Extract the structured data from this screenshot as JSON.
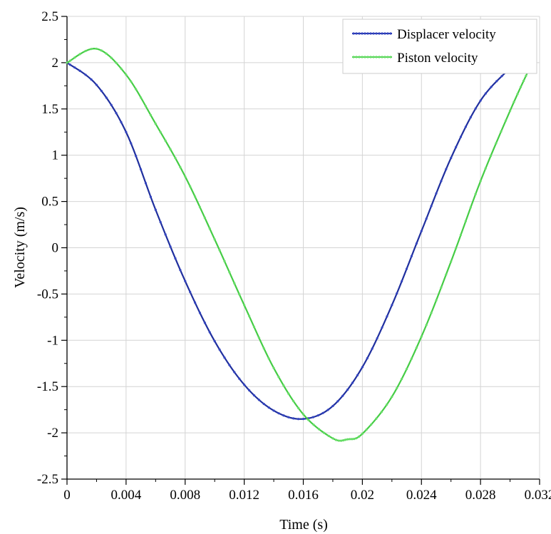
{
  "chart_data": {
    "type": "line",
    "title": "",
    "xlabel": "Time (s)",
    "ylabel": "Velocity (m/s)",
    "xlim": [
      0,
      0.032
    ],
    "ylim": [
      -2.5,
      2.5
    ],
    "x_ticks": [
      0,
      0.004,
      0.008,
      0.012,
      0.016,
      0.02,
      0.024,
      0.028,
      0.032
    ],
    "x_tick_labels": [
      "0",
      "0.004",
      "0.008",
      "0.012",
      "0.016",
      "0.02",
      "0.024",
      "0.028",
      "0.032"
    ],
    "y_ticks": [
      2.5,
      2,
      1.5,
      1,
      0.5,
      0,
      -0.5,
      -1,
      -1.5,
      -2,
      -2.5
    ],
    "y_tick_labels": [
      "2.5",
      "2",
      "1.5",
      "1",
      "0.5",
      "0",
      "-0.5",
      "-1",
      "-1.5",
      "-2",
      "-2.5"
    ],
    "grid": true,
    "legend_position": "top-right",
    "series": [
      {
        "name": "Displacer velocity",
        "color": "#1f2f9e",
        "marker_color": "#3344c0",
        "x": [
          0,
          0.002,
          0.004,
          0.006,
          0.008,
          0.01,
          0.012,
          0.014,
          0.016,
          0.018,
          0.02,
          0.022,
          0.024,
          0.026,
          0.028,
          0.03,
          0.0305
        ],
        "y": [
          2.0,
          1.76,
          1.25,
          0.41,
          -0.36,
          -1.01,
          -1.48,
          -1.76,
          -1.85,
          -1.71,
          -1.29,
          -0.62,
          0.18,
          0.97,
          1.59,
          1.94,
          2.0
        ]
      },
      {
        "name": "Piston velocity",
        "color": "#44cc44",
        "marker_color": "#66dd66",
        "x": [
          0,
          0.002,
          0.004,
          0.006,
          0.008,
          0.01,
          0.012,
          0.014,
          0.016,
          0.018,
          0.019,
          0.02,
          0.022,
          0.024,
          0.026,
          0.028,
          0.03,
          0.0312
        ],
        "y": [
          2.0,
          2.15,
          1.87,
          1.34,
          0.77,
          0.09,
          -0.62,
          -1.3,
          -1.8,
          -2.06,
          -2.07,
          -2.01,
          -1.61,
          -0.96,
          -0.15,
          0.72,
          1.48,
          1.9
        ]
      }
    ]
  }
}
